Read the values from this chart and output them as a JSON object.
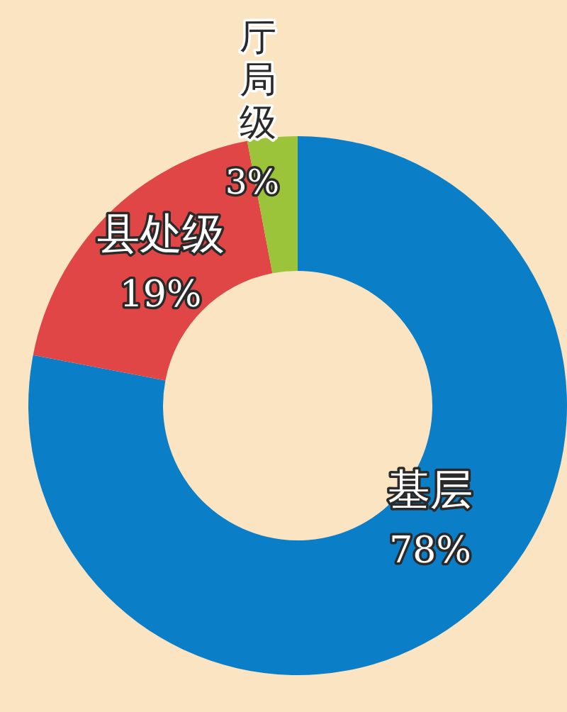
{
  "chart_data": {
    "type": "donut",
    "categories": [
      "基层",
      "县处级",
      "厅局级"
    ],
    "values": [
      78,
      19,
      3
    ],
    "value_labels": [
      "78%",
      "19%",
      "3%"
    ],
    "colors": [
      "#0a7ec6",
      "#e04646",
      "#9cc43a"
    ],
    "legend": false
  }
}
